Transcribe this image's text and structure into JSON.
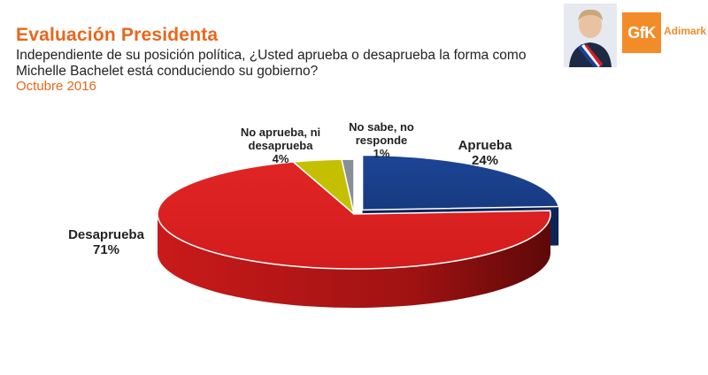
{
  "header": {
    "title": "Evaluación Presidenta",
    "question_line1": "Independiente de su posición política, ¿Usted aprueba o desaprueba la forma como",
    "question_line2": "Michelle Bachelet está conduciendo su gobierno?",
    "date": "Octubre 2016"
  },
  "brand": {
    "gfk_text": "GfK",
    "name": "Adimark",
    "icons": [
      "president-photo",
      "gfk-logo"
    ]
  },
  "colors": {
    "accent": "#e8671b",
    "aprueba": "#173a82",
    "desaprueba": "#d71f1f",
    "ni": "#c4c000",
    "ns": "#8a8f96"
  },
  "chart_data": {
    "type": "pie",
    "style": "3d-exploded",
    "slices": [
      {
        "key": "aprueba",
        "label_lines": [
          "Aprueba"
        ],
        "value_label": "24%",
        "value": 24,
        "color": "#173a82",
        "exploded": true
      },
      {
        "key": "desaprueba",
        "label_lines": [
          "Desaprueba"
        ],
        "value_label": "71%",
        "value": 71,
        "color": "#d71f1f",
        "exploded": false
      },
      {
        "key": "ni",
        "label_lines": [
          "No aprueba, ni",
          "desaprueba"
        ],
        "value_label": "4%",
        "value": 4,
        "color": "#c4c000",
        "exploded": false
      },
      {
        "key": "ns",
        "label_lines": [
          "No sabe, no",
          "responde"
        ],
        "value_label": "1%",
        "value": 1,
        "color": "#8a8f96",
        "exploded": false
      }
    ]
  }
}
